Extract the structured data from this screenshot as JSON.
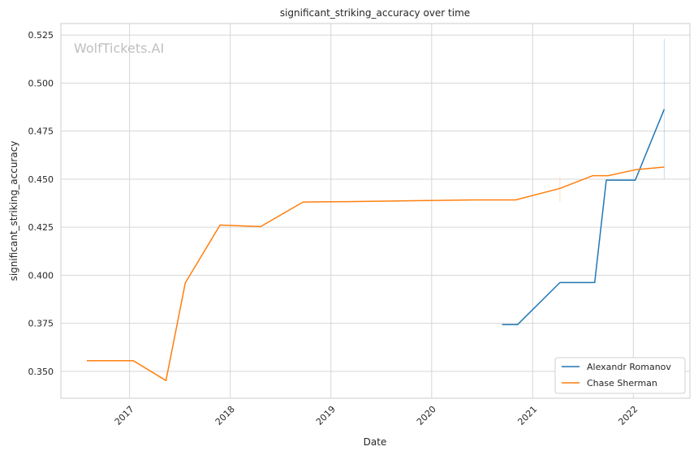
{
  "chart_data": {
    "type": "line",
    "title": "significant_striking_accuracy over time",
    "xlabel": "Date",
    "ylabel": "significant_striking_accuracy",
    "watermark": "WolfTickets.AI",
    "xlim": [
      "2016-04-27",
      "2022-07-25"
    ],
    "ylim": [
      0.336,
      0.531
    ],
    "x_ticks": [
      {
        "date": "2017-01-01",
        "label": "2017"
      },
      {
        "date": "2018-01-01",
        "label": "2018"
      },
      {
        "date": "2019-01-01",
        "label": "2019"
      },
      {
        "date": "2020-01-01",
        "label": "2020"
      },
      {
        "date": "2021-01-01",
        "label": "2021"
      },
      {
        "date": "2022-01-01",
        "label": "2022"
      }
    ],
    "y_ticks": [
      {
        "value": 0.35,
        "label": "0.350"
      },
      {
        "value": 0.375,
        "label": "0.375"
      },
      {
        "value": 0.4,
        "label": "0.400"
      },
      {
        "value": 0.425,
        "label": "0.425"
      },
      {
        "value": 0.45,
        "label": "0.450"
      },
      {
        "value": 0.475,
        "label": "0.475"
      },
      {
        "value": 0.5,
        "label": "0.500"
      },
      {
        "value": 0.525,
        "label": "0.525"
      }
    ],
    "grid": true,
    "legend_position": "bottom-right",
    "series": [
      {
        "name": "Alexandr Romanov",
        "color": "#1f77b4",
        "points": [
          {
            "x": "2020-09-12",
            "y": 0.3743
          },
          {
            "x": "2020-11-07",
            "y": 0.3743
          },
          {
            "x": "2021-04-10",
            "y": 0.3962
          },
          {
            "x": "2021-08-14",
            "y": 0.3962
          },
          {
            "x": "2021-09-25",
            "y": 0.4495
          },
          {
            "x": "2022-01-08",
            "y": 0.4495
          },
          {
            "x": "2022-04-23",
            "y": 0.4864
          }
        ],
        "band": {
          "x": "2022-04-23",
          "low": 0.45,
          "high": 0.523
        }
      },
      {
        "name": "Chase Sherman",
        "color": "#ff7f0e",
        "points": [
          {
            "x": "2016-07-30",
            "y": 0.3555
          },
          {
            "x": "2017-01-15",
            "y": 0.3555
          },
          {
            "x": "2017-05-13",
            "y": 0.3452
          },
          {
            "x": "2017-07-22",
            "y": 0.396
          },
          {
            "x": "2017-11-25",
            "y": 0.4261
          },
          {
            "x": "2018-04-21",
            "y": 0.4253
          },
          {
            "x": "2018-09-22",
            "y": 0.4381
          },
          {
            "x": "2019-03-01",
            "y": 0.4383
          },
          {
            "x": "2020-06-01",
            "y": 0.4392
          },
          {
            "x": "2020-10-31",
            "y": 0.4392
          },
          {
            "x": "2021-04-10",
            "y": 0.4452
          },
          {
            "x": "2021-08-07",
            "y": 0.4518
          },
          {
            "x": "2021-10-02",
            "y": 0.4518
          },
          {
            "x": "2022-01-08",
            "y": 0.4549
          },
          {
            "x": "2022-04-23",
            "y": 0.4563
          }
        ],
        "band": {
          "x": "2021-04-10",
          "low": 0.438,
          "high": 0.451
        }
      }
    ]
  }
}
